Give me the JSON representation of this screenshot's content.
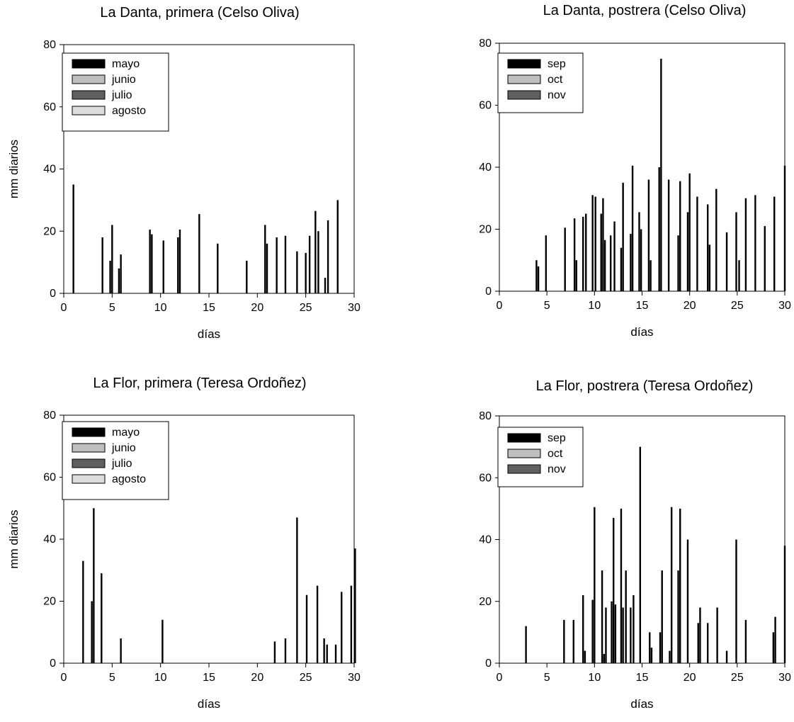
{
  "colors": {
    "mayo": "#000000",
    "junio": "#bebebe",
    "julio": "#5f5f5f",
    "agosto": "#dcdcdc",
    "sep": "#000000",
    "oct": "#bebebe",
    "nov": "#5f5f5f",
    "axis": "#000000"
  },
  "chart_data": [
    {
      "type": "bar",
      "title": "La Danta, primera (Celso Oliva)",
      "xlabel": "días",
      "ylabel": "mm diarios",
      "xlim": [
        0,
        30
      ],
      "ylim": [
        0,
        80
      ],
      "xticks": [
        0,
        5,
        10,
        15,
        20,
        25,
        30
      ],
      "yticks": [
        0,
        20,
        40,
        60,
        80
      ],
      "grid": false,
      "legend_placement": "top-left",
      "series": [
        {
          "name": "mayo",
          "color_key": "mayo",
          "points": [
            {
              "x": 1,
              "y": 35
            },
            {
              "x": 4,
              "y": 18
            },
            {
              "x": 4.8,
              "y": 10.5
            },
            {
              "x": 5,
              "y": 22
            },
            {
              "x": 5.7,
              "y": 8
            },
            {
              "x": 5.9,
              "y": 12.5
            },
            {
              "x": 8.9,
              "y": 20.5
            },
            {
              "x": 9.1,
              "y": 19
            },
            {
              "x": 10.3,
              "y": 17
            },
            {
              "x": 11.8,
              "y": 18
            },
            {
              "x": 12,
              "y": 20.5
            },
            {
              "x": 14,
              "y": 25.5
            },
            {
              "x": 15.9,
              "y": 16
            },
            {
              "x": 18.9,
              "y": 10.5
            },
            {
              "x": 20.8,
              "y": 22
            },
            {
              "x": 21,
              "y": 16
            },
            {
              "x": 22,
              "y": 18
            },
            {
              "x": 22.9,
              "y": 18.5
            },
            {
              "x": 24.1,
              "y": 13.5
            },
            {
              "x": 25,
              "y": 13
            },
            {
              "x": 25.4,
              "y": 18.5
            },
            {
              "x": 26,
              "y": 26.5
            },
            {
              "x": 26.3,
              "y": 20
            },
            {
              "x": 27,
              "y": 5
            },
            {
              "x": 27.3,
              "y": 23.5
            },
            {
              "x": 28.3,
              "y": 30
            }
          ]
        },
        {
          "name": "junio",
          "color_key": "junio",
          "points": []
        },
        {
          "name": "julio",
          "color_key": "julio",
          "points": []
        },
        {
          "name": "agosto",
          "color_key": "agosto",
          "points": []
        }
      ]
    },
    {
      "type": "bar",
      "title": "La Danta, postrera (Celso Oliva)",
      "xlabel": "días",
      "ylabel": "",
      "xlim": [
        0,
        30
      ],
      "ylim": [
        0,
        80
      ],
      "xticks": [
        0,
        5,
        10,
        15,
        20,
        25,
        30
      ],
      "yticks": [
        0,
        20,
        40,
        60,
        80
      ],
      "grid": false,
      "legend_placement": "top-left",
      "series": [
        {
          "name": "sep",
          "color_key": "sep",
          "points": [
            {
              "x": 3.9,
              "y": 10
            },
            {
              "x": 4.1,
              "y": 8
            },
            {
              "x": 4.9,
              "y": 18
            },
            {
              "x": 6.9,
              "y": 20.5
            },
            {
              "x": 7.9,
              "y": 23.5
            },
            {
              "x": 8.1,
              "y": 10
            },
            {
              "x": 8.8,
              "y": 24
            },
            {
              "x": 9.1,
              "y": 25
            },
            {
              "x": 9.8,
              "y": 31
            },
            {
              "x": 10.1,
              "y": 30.5
            },
            {
              "x": 10.7,
              "y": 25
            },
            {
              "x": 10.9,
              "y": 30
            },
            {
              "x": 11.1,
              "y": 16.5
            },
            {
              "x": 11.7,
              "y": 18
            },
            {
              "x": 12.1,
              "y": 22.5
            },
            {
              "x": 12.8,
              "y": 14
            },
            {
              "x": 13,
              "y": 35
            },
            {
              "x": 13.8,
              "y": 18.5
            },
            {
              "x": 14,
              "y": 40.5
            },
            {
              "x": 14.7,
              "y": 25.5
            },
            {
              "x": 14.9,
              "y": 20
            },
            {
              "x": 15.7,
              "y": 36
            },
            {
              "x": 15.9,
              "y": 10
            },
            {
              "x": 16.8,
              "y": 40
            },
            {
              "x": 17,
              "y": 75
            },
            {
              "x": 17.8,
              "y": 36
            },
            {
              "x": 18.8,
              "y": 18
            },
            {
              "x": 19,
              "y": 35.5
            },
            {
              "x": 19.8,
              "y": 25.5
            },
            {
              "x": 20,
              "y": 38
            },
            {
              "x": 20.8,
              "y": 30.5
            },
            {
              "x": 21.9,
              "y": 28
            },
            {
              "x": 22.1,
              "y": 15
            },
            {
              "x": 22.8,
              "y": 33
            },
            {
              "x": 23.9,
              "y": 19
            },
            {
              "x": 24.9,
              "y": 25.5
            },
            {
              "x": 25.2,
              "y": 10
            },
            {
              "x": 25.9,
              "y": 30
            },
            {
              "x": 26.9,
              "y": 31
            },
            {
              "x": 27.9,
              "y": 21
            },
            {
              "x": 28.9,
              "y": 30.5
            },
            {
              "x": 30,
              "y": 40.5
            }
          ]
        },
        {
          "name": "oct",
          "color_key": "oct",
          "points": []
        },
        {
          "name": "nov",
          "color_key": "nov",
          "points": []
        }
      ]
    },
    {
      "type": "bar",
      "title": "La Flor, primera (Teresa Ordoñez)",
      "xlabel": "días",
      "ylabel": "mm diarios",
      "xlim": [
        0,
        30
      ],
      "ylim": [
        0,
        80
      ],
      "xticks": [
        0,
        5,
        10,
        15,
        20,
        25,
        30
      ],
      "yticks": [
        0,
        20,
        40,
        60,
        80
      ],
      "grid": false,
      "legend_placement": "top-left",
      "series": [
        {
          "name": "mayo",
          "color_key": "mayo",
          "points": [
            {
              "x": 2,
              "y": 33
            },
            {
              "x": 2.9,
              "y": 20
            },
            {
              "x": 3.1,
              "y": 50
            },
            {
              "x": 3.9,
              "y": 29
            },
            {
              "x": 5.9,
              "y": 8
            },
            {
              "x": 10.2,
              "y": 14
            },
            {
              "x": 21.8,
              "y": 7
            },
            {
              "x": 22.9,
              "y": 8
            },
            {
              "x": 24.1,
              "y": 47
            },
            {
              "x": 25.1,
              "y": 22
            },
            {
              "x": 26.2,
              "y": 25
            },
            {
              "x": 26.9,
              "y": 8
            },
            {
              "x": 27.2,
              "y": 6
            },
            {
              "x": 28.1,
              "y": 6
            },
            {
              "x": 28.7,
              "y": 23
            },
            {
              "x": 29.7,
              "y": 25
            },
            {
              "x": 30.1,
              "y": 37
            }
          ]
        },
        {
          "name": "junio",
          "color_key": "junio",
          "points": []
        },
        {
          "name": "julio",
          "color_key": "julio",
          "points": []
        },
        {
          "name": "agosto",
          "color_key": "agosto",
          "points": []
        }
      ]
    },
    {
      "type": "bar",
      "title": "La Flor, postrera (Teresa Ordoñez)",
      "xlabel": "días",
      "ylabel": "",
      "xlim": [
        0,
        30
      ],
      "ylim": [
        0,
        80
      ],
      "xticks": [
        0,
        5,
        10,
        15,
        20,
        25,
        30
      ],
      "yticks": [
        0,
        20,
        40,
        60,
        80
      ],
      "grid": false,
      "legend_placement": "top-left",
      "series": [
        {
          "name": "sep",
          "color_key": "sep",
          "points": [
            {
              "x": 2.8,
              "y": 12
            },
            {
              "x": 6.8,
              "y": 14
            },
            {
              "x": 7.8,
              "y": 14
            },
            {
              "x": 8.8,
              "y": 22
            },
            {
              "x": 9,
              "y": 4
            },
            {
              "x": 9.8,
              "y": 20.5
            },
            {
              "x": 10,
              "y": 50.5
            },
            {
              "x": 10.8,
              "y": 30
            },
            {
              "x": 11,
              "y": 3
            },
            {
              "x": 11.2,
              "y": 18
            },
            {
              "x": 11.8,
              "y": 20
            },
            {
              "x": 12,
              "y": 47
            },
            {
              "x": 12.2,
              "y": 19
            },
            {
              "x": 12.8,
              "y": 50
            },
            {
              "x": 13,
              "y": 18
            },
            {
              "x": 13.3,
              "y": 30
            },
            {
              "x": 13.8,
              "y": 18
            },
            {
              "x": 14.1,
              "y": 22
            },
            {
              "x": 14.8,
              "y": 70
            },
            {
              "x": 15.8,
              "y": 10
            },
            {
              "x": 16,
              "y": 5
            },
            {
              "x": 16.9,
              "y": 10
            },
            {
              "x": 17.1,
              "y": 30
            },
            {
              "x": 17.9,
              "y": 4
            },
            {
              "x": 18.1,
              "y": 50.5
            },
            {
              "x": 18.8,
              "y": 30
            },
            {
              "x": 19,
              "y": 50
            },
            {
              "x": 19.8,
              "y": 40
            },
            {
              "x": 20.9,
              "y": 13
            },
            {
              "x": 21.1,
              "y": 18
            },
            {
              "x": 21.9,
              "y": 13
            },
            {
              "x": 22.9,
              "y": 18
            },
            {
              "x": 23.9,
              "y": 4
            },
            {
              "x": 24.9,
              "y": 40
            },
            {
              "x": 25.9,
              "y": 14
            },
            {
              "x": 28.8,
              "y": 10
            },
            {
              "x": 29,
              "y": 15
            },
            {
              "x": 30,
              "y": 38
            }
          ]
        },
        {
          "name": "oct",
          "color_key": "oct",
          "points": []
        },
        {
          "name": "nov",
          "color_key": "nov",
          "points": []
        }
      ]
    }
  ]
}
